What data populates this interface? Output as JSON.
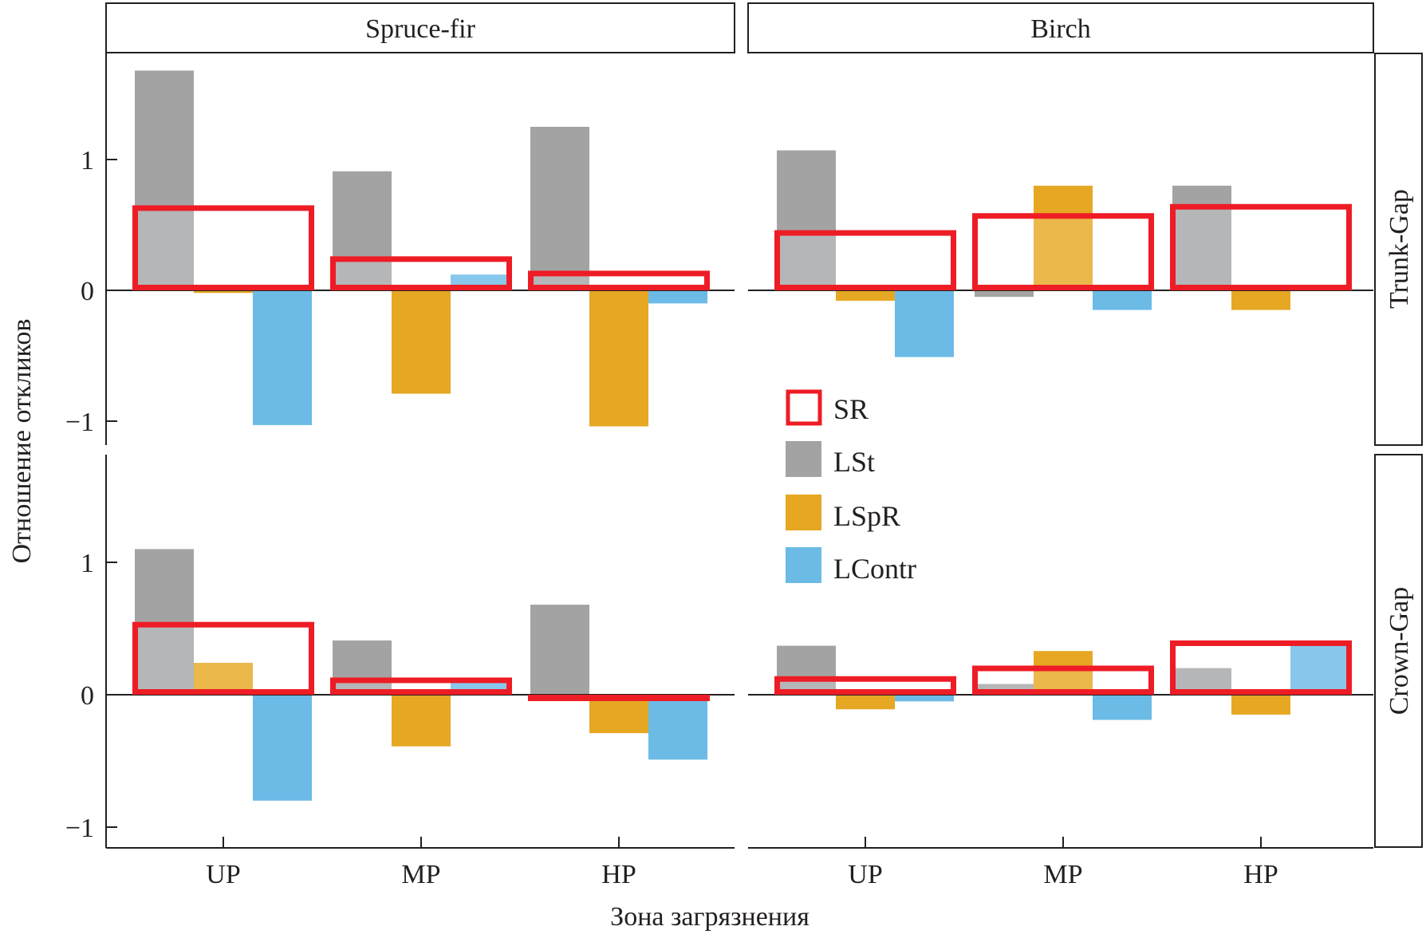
{
  "chart_data": {
    "type": "bar",
    "title": "",
    "xlabel": "Зона загрязнения",
    "ylabel": "Отношение откликов",
    "ylim": [
      -1.2,
      1.8
    ],
    "yticks": [
      "1",
      "0",
      "−1"
    ],
    "ytick_values": [
      1,
      0,
      -1
    ],
    "categories": [
      "UP",
      "MP",
      "HP"
    ],
    "column_facets": [
      "Spruce-fir",
      "Birch"
    ],
    "row_facets": [
      "Trunk-Gap",
      "Crown-Gap"
    ],
    "legend": {
      "placement": "center",
      "entries": [
        {
          "name": "SR",
          "style": "outline",
          "color": "#ee1c25"
        },
        {
          "name": "LSt",
          "style": "fill",
          "color": "#a3a3a3"
        },
        {
          "name": "LSpR",
          "style": "fill",
          "color": "#e6a723"
        },
        {
          "name": "LContr",
          "style": "fill",
          "color": "#6bbbe6"
        }
      ]
    },
    "panels": [
      {
        "column": "Spruce-fir",
        "row": "Trunk-Gap",
        "series": [
          {
            "name": "SR",
            "values": [
              0.65,
              0.26,
              0.15
            ]
          },
          {
            "name": "LSt",
            "values": [
              1.68,
              0.91,
              1.25
            ]
          },
          {
            "name": "LSpR",
            "values": [
              -0.02,
              -0.79,
              -1.04
            ]
          },
          {
            "name": "LContr",
            "values": [
              -1.03,
              0.12,
              -0.1
            ]
          }
        ]
      },
      {
        "column": "Birch",
        "row": "Trunk-Gap",
        "series": [
          {
            "name": "SR",
            "values": [
              0.46,
              0.59,
              0.66
            ]
          },
          {
            "name": "LSt",
            "values": [
              1.07,
              -0.05,
              0.8
            ]
          },
          {
            "name": "LSpR",
            "values": [
              -0.08,
              0.8,
              -0.15
            ]
          },
          {
            "name": "LContr",
            "values": [
              -0.51,
              -0.15,
              0.0
            ]
          }
        ]
      },
      {
        "column": "Spruce-fir",
        "row": "Crown-Gap",
        "series": [
          {
            "name": "SR",
            "values": [
              0.55,
              0.13,
              -0.01
            ]
          },
          {
            "name": "LSt",
            "values": [
              1.1,
              0.41,
              0.68
            ]
          },
          {
            "name": "LSpR",
            "values": [
              0.24,
              -0.39,
              -0.29
            ]
          },
          {
            "name": "LContr",
            "values": [
              -0.8,
              0.12,
              -0.49
            ]
          }
        ]
      },
      {
        "column": "Birch",
        "row": "Crown-Gap",
        "series": [
          {
            "name": "SR",
            "values": [
              0.14,
              0.22,
              0.41
            ]
          },
          {
            "name": "LSt",
            "values": [
              0.37,
              0.08,
              0.2
            ]
          },
          {
            "name": "LSpR",
            "values": [
              -0.11,
              0.33,
              -0.15
            ]
          },
          {
            "name": "LContr",
            "values": [
              -0.05,
              -0.19,
              0.39
            ]
          }
        ]
      }
    ]
  },
  "colors": {
    "sr": "#ee1c25",
    "lst": "#a3a3a3",
    "lst_overlap": "#b4b6b8",
    "lspr": "#e6a723",
    "lspr_overlap": "#ebb84b",
    "lcontr": "#6bbbe6",
    "lcontr_overlap": "#88c8ec",
    "axis": "#231f20"
  }
}
